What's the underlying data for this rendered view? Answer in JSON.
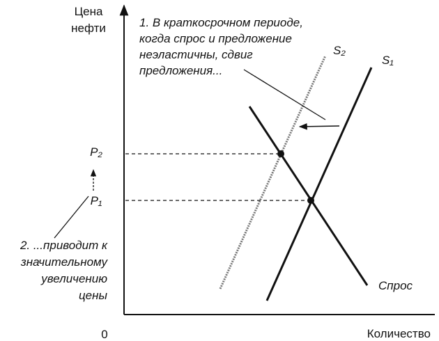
{
  "axes": {
    "y_label": [
      "Цена",
      "нефти"
    ],
    "x_label": "Количество",
    "origin": "0"
  },
  "prices": {
    "p2": "P₂",
    "p1": "P₁"
  },
  "curves": {
    "s2": "S₂",
    "s1": "S₁",
    "demand": "Спрос"
  },
  "annotations": {
    "step1": [
      "1. В краткосрочном периоде,",
      "когда спрос и предложение",
      "неэластичны, сдвиг",
      "предложения..."
    ],
    "step2": [
      "2. ...приводит к",
      "значительному",
      "увеличению",
      "цены"
    ]
  }
}
